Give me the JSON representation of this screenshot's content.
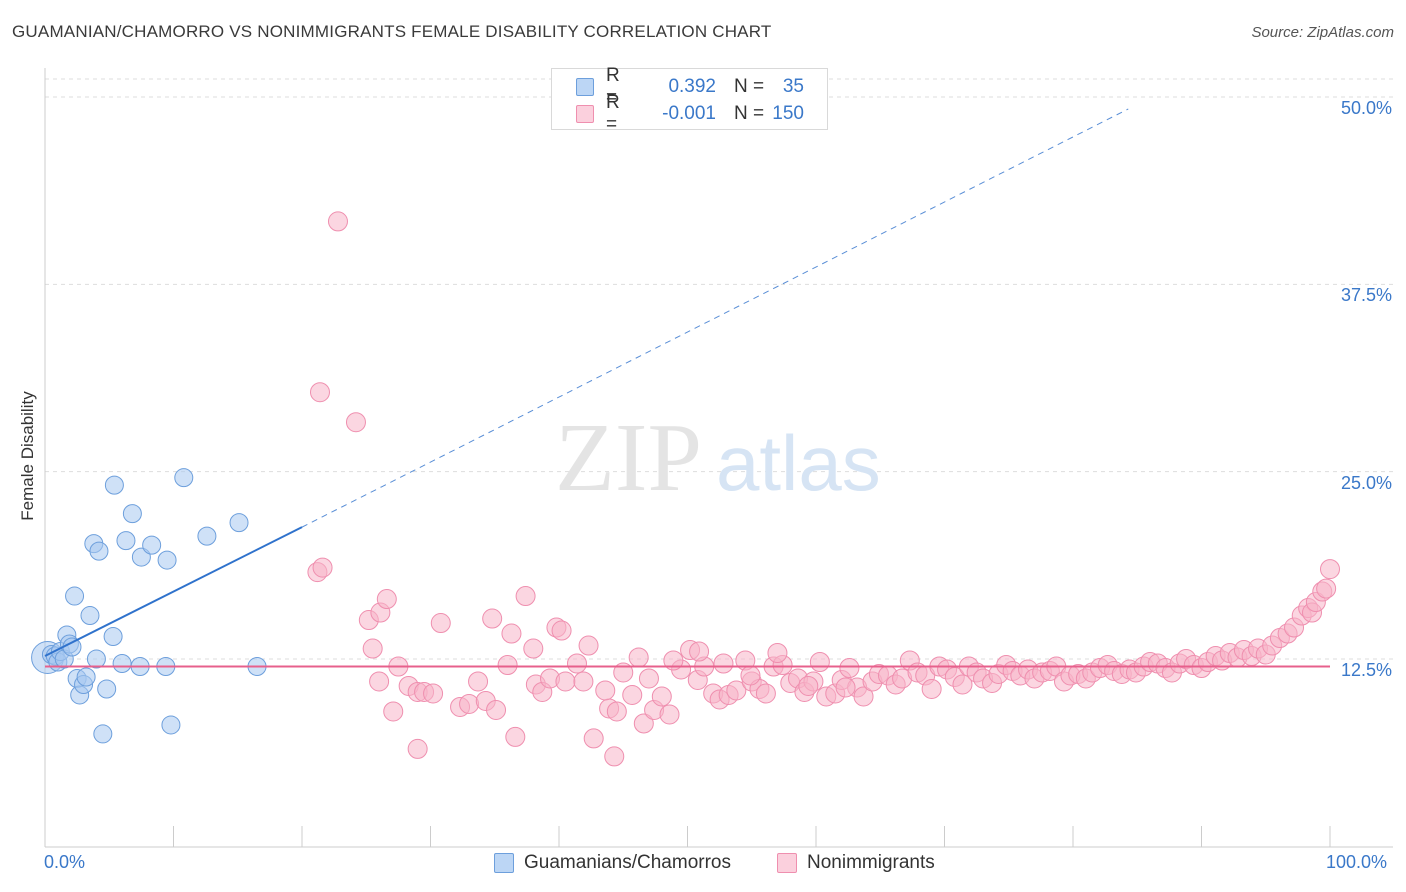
{
  "title": "GUAMANIAN/CHAMORRO VS NONIMMIGRANTS FEMALE DISABILITY CORRELATION CHART",
  "source": "Source: ZipAtlas.com",
  "watermark": {
    "zip": "ZIP",
    "atlas": "atlas"
  },
  "legend_top": [
    {
      "r_label": "R =",
      "r_value": "0.392",
      "n_label": "N =",
      "n_value": "35"
    },
    {
      "r_label": "R =",
      "r_value": "-0.001",
      "n_label": "N =",
      "n_value": "150"
    }
  ],
  "colors": {
    "blue_fill": "#a8c8f0",
    "blue_stroke": "#6d9fdc",
    "blue_line": "#2f72cc",
    "pink_fill": "#f7b5c8",
    "pink_stroke": "#ef8faf",
    "pink_line": "#e7608c",
    "grid": "#dddddd",
    "tick_text": "#3a78c9"
  },
  "chart_data": {
    "type": "scatter",
    "title": "GUAMANIAN/CHAMORRO VS NONIMMIGRANTS FEMALE DISABILITY CORRELATION CHART",
    "xlabel": "",
    "ylabel": "Female Disability",
    "xlim": [
      0,
      100
    ],
    "ylim": [
      0,
      52
    ],
    "x_tick_labels": [
      {
        "value": 0,
        "label": "0.0%"
      },
      {
        "value": 100,
        "label": "100.0%"
      }
    ],
    "y_ticks": [
      {
        "value": 12.5,
        "label": "12.5%"
      },
      {
        "value": 25,
        "label": "25.0%"
      },
      {
        "value": 37.5,
        "label": "37.5%"
      },
      {
        "value": 50,
        "label": "50.0%"
      }
    ],
    "grid": true,
    "legend_position": "bottom",
    "series": [
      {
        "name": "Guamanians/Chamorros",
        "color": "blue",
        "trend": {
          "x0": 0,
          "y0": 12.7,
          "x1": 20,
          "y1": 21.3,
          "solid_until_x": 20,
          "dashed_until_x": 84.3,
          "dashed_end_y": 49.2
        },
        "points": [
          [
            0.2,
            12.6,
            22
          ],
          [
            0.5,
            12.8,
            12
          ],
          [
            0.8,
            12.7,
            12
          ],
          [
            1.0,
            12.3,
            12
          ],
          [
            1.2,
            13.0,
            12
          ],
          [
            1.5,
            12.5,
            12
          ],
          [
            1.7,
            14.1,
            12
          ],
          [
            1.9,
            13.5,
            12
          ],
          [
            2.1,
            13.3,
            12
          ],
          [
            2.3,
            16.7,
            12
          ],
          [
            2.5,
            11.2,
            12
          ],
          [
            2.7,
            10.1,
            12
          ],
          [
            3.0,
            10.8,
            12
          ],
          [
            3.2,
            11.3,
            12
          ],
          [
            3.5,
            15.4,
            12
          ],
          [
            3.8,
            20.2,
            12
          ],
          [
            4.0,
            12.5,
            12
          ],
          [
            4.2,
            19.7,
            12
          ],
          [
            4.5,
            7.5,
            12
          ],
          [
            4.8,
            10.5,
            12
          ],
          [
            5.3,
            14.0,
            12
          ],
          [
            5.4,
            24.1,
            12
          ],
          [
            6.0,
            12.2,
            12
          ],
          [
            6.3,
            20.4,
            12
          ],
          [
            6.8,
            22.2,
            12
          ],
          [
            7.4,
            12.0,
            12
          ],
          [
            7.5,
            19.3,
            12
          ],
          [
            8.3,
            20.1,
            12
          ],
          [
            9.4,
            12.0,
            12
          ],
          [
            9.5,
            19.1,
            12
          ],
          [
            9.8,
            8.1,
            12
          ],
          [
            10.8,
            24.6,
            12
          ],
          [
            12.6,
            20.7,
            12
          ],
          [
            15.1,
            21.6,
            12
          ],
          [
            16.5,
            12.0,
            12
          ]
        ]
      },
      {
        "name": "Nonimmigrants",
        "color": "pink",
        "trend": {
          "x0": 0,
          "y0": 12.0,
          "x1": 100,
          "y1": 12.0
        },
        "points": [
          [
            21.4,
            30.3
          ],
          [
            22.8,
            41.7
          ],
          [
            21.2,
            18.3
          ],
          [
            21.6,
            18.6
          ],
          [
            24.2,
            28.3
          ],
          [
            25.2,
            15.1
          ],
          [
            26.1,
            15.6
          ],
          [
            26.6,
            16.5
          ],
          [
            25.5,
            13.2
          ],
          [
            26.0,
            11.0
          ],
          [
            27.1,
            9.0
          ],
          [
            27.5,
            12.0
          ],
          [
            28.3,
            10.7
          ],
          [
            29.0,
            10.3
          ],
          [
            29.5,
            10.3
          ],
          [
            30.2,
            10.2
          ],
          [
            29.0,
            6.5
          ],
          [
            30.8,
            14.9
          ],
          [
            32.3,
            9.3
          ],
          [
            33.0,
            9.5
          ],
          [
            33.7,
            11.0
          ],
          [
            34.3,
            9.7
          ],
          [
            34.8,
            15.2
          ],
          [
            35.1,
            9.1
          ],
          [
            36.0,
            12.1
          ],
          [
            36.6,
            7.3
          ],
          [
            37.4,
            16.7
          ],
          [
            38.2,
            10.8
          ],
          [
            38.7,
            10.3
          ],
          [
            39.3,
            11.2
          ],
          [
            39.8,
            14.6
          ],
          [
            40.5,
            11.0
          ],
          [
            41.4,
            12.2
          ],
          [
            41.9,
            11.0
          ],
          [
            42.3,
            13.4
          ],
          [
            42.7,
            7.2
          ],
          [
            43.9,
            9.2
          ],
          [
            44.5,
            9.0
          ],
          [
            44.3,
            6.0
          ],
          [
            45.0,
            11.6
          ],
          [
            45.7,
            10.1
          ],
          [
            46.2,
            12.6
          ],
          [
            46.6,
            8.2
          ],
          [
            47.4,
            9.1
          ],
          [
            48.0,
            10.0
          ],
          [
            48.6,
            8.8
          ],
          [
            49.5,
            11.8
          ],
          [
            50.2,
            13.1
          ],
          [
            50.8,
            11.1
          ],
          [
            51.3,
            12.0
          ],
          [
            52.0,
            10.2
          ],
          [
            52.5,
            9.8
          ],
          [
            53.2,
            10.1
          ],
          [
            53.8,
            10.4
          ],
          [
            54.5,
            12.4
          ],
          [
            55.0,
            11.0
          ],
          [
            55.6,
            10.5
          ],
          [
            56.1,
            10.2
          ],
          [
            56.7,
            12.0
          ],
          [
            57.4,
            12.1
          ],
          [
            58.0,
            10.9
          ],
          [
            58.6,
            11.2
          ],
          [
            59.1,
            10.3
          ],
          [
            59.8,
            11.0
          ],
          [
            60.3,
            12.3
          ],
          [
            60.8,
            10.0
          ],
          [
            61.5,
            10.2
          ],
          [
            62.0,
            11.1
          ],
          [
            62.6,
            11.9
          ],
          [
            63.2,
            10.6
          ],
          [
            63.7,
            10.0
          ],
          [
            64.4,
            11.0
          ],
          [
            64.9,
            11.5
          ],
          [
            65.6,
            11.4
          ],
          [
            66.2,
            10.8
          ],
          [
            66.7,
            11.2
          ],
          [
            67.3,
            12.4
          ],
          [
            67.9,
            11.6
          ],
          [
            68.5,
            11.4
          ],
          [
            69.0,
            10.5
          ],
          [
            69.6,
            12.0
          ],
          [
            70.2,
            11.8
          ],
          [
            70.8,
            11.3
          ],
          [
            71.4,
            10.8
          ],
          [
            71.9,
            12.0
          ],
          [
            72.5,
            11.6
          ],
          [
            73.0,
            11.2
          ],
          [
            73.7,
            10.9
          ],
          [
            74.2,
            11.5
          ],
          [
            74.8,
            12.1
          ],
          [
            75.3,
            11.7
          ],
          [
            75.9,
            11.4
          ],
          [
            76.5,
            11.8
          ],
          [
            77.0,
            11.2
          ],
          [
            77.6,
            11.6
          ],
          [
            78.2,
            11.7
          ],
          [
            78.7,
            12.0
          ],
          [
            79.3,
            11.0
          ],
          [
            79.8,
            11.4
          ],
          [
            80.4,
            11.5
          ],
          [
            81.0,
            11.2
          ],
          [
            81.5,
            11.6
          ],
          [
            82.1,
            11.9
          ],
          [
            82.7,
            12.1
          ],
          [
            83.2,
            11.7
          ],
          [
            83.8,
            11.5
          ],
          [
            84.4,
            11.8
          ],
          [
            84.9,
            11.6
          ],
          [
            85.5,
            12.0
          ],
          [
            86.0,
            12.3
          ],
          [
            86.6,
            12.2
          ],
          [
            87.2,
            11.9
          ],
          [
            87.7,
            11.6
          ],
          [
            88.3,
            12.2
          ],
          [
            88.8,
            12.5
          ],
          [
            89.4,
            12.1
          ],
          [
            90.0,
            11.9
          ],
          [
            90.5,
            12.3
          ],
          [
            91.1,
            12.7
          ],
          [
            91.6,
            12.4
          ],
          [
            92.2,
            12.9
          ],
          [
            92.8,
            12.6
          ],
          [
            93.3,
            13.1
          ],
          [
            93.9,
            12.7
          ],
          [
            94.4,
            13.2
          ],
          [
            95.0,
            12.8
          ],
          [
            95.5,
            13.4
          ],
          [
            96.1,
            13.9
          ],
          [
            96.7,
            14.2
          ],
          [
            97.2,
            14.6
          ],
          [
            97.8,
            15.4
          ],
          [
            98.3,
            15.9
          ],
          [
            98.6,
            15.6
          ],
          [
            98.9,
            16.3
          ],
          [
            99.4,
            17.0
          ],
          [
            99.7,
            17.2
          ],
          [
            100.0,
            18.5
          ],
          [
            36.3,
            14.2
          ],
          [
            38.0,
            13.2
          ],
          [
            40.2,
            14.4
          ],
          [
            43.6,
            10.4
          ],
          [
            47.0,
            11.2
          ],
          [
            48.9,
            12.4
          ],
          [
            50.9,
            13.0
          ],
          [
            52.8,
            12.2
          ],
          [
            54.9,
            11.4
          ],
          [
            57.0,
            12.9
          ],
          [
            59.4,
            10.7
          ],
          [
            62.3,
            10.6
          ]
        ]
      }
    ]
  },
  "legend_bottom": [
    {
      "label": "Guamanians/Chamorros"
    },
    {
      "label": "Nonimmigrants"
    }
  ]
}
